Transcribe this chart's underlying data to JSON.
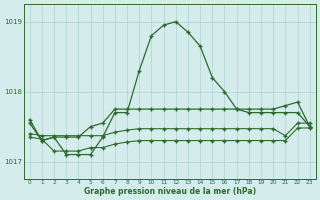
{
  "hours": [
    0,
    1,
    2,
    3,
    4,
    5,
    6,
    7,
    8,
    9,
    10,
    11,
    12,
    13,
    14,
    15,
    16,
    17,
    18,
    19,
    20,
    21,
    22,
    23
  ],
  "line1": [
    1017.6,
    1017.3,
    1017.35,
    1017.1,
    1017.1,
    1017.1,
    1017.35,
    1017.7,
    1017.7,
    1018.3,
    1018.8,
    1018.95,
    1019.0,
    1018.85,
    1018.65,
    1018.2,
    1018.0,
    1017.75,
    1017.7,
    1017.7,
    1017.7,
    1017.7,
    1017.7,
    1017.5
  ],
  "line2": [
    1017.55,
    1017.3,
    1017.35,
    1017.35,
    1017.35,
    1017.5,
    1017.55,
    1017.75,
    1017.75,
    1017.75,
    1017.75,
    1017.75,
    1017.75,
    1017.75,
    1017.75,
    1017.75,
    1017.75,
    1017.75,
    1017.75,
    1017.75,
    1017.75,
    1017.8,
    1017.85,
    1017.5
  ],
  "line3": [
    1017.4,
    1017.37,
    1017.37,
    1017.37,
    1017.37,
    1017.37,
    1017.37,
    1017.42,
    1017.45,
    1017.47,
    1017.47,
    1017.47,
    1017.47,
    1017.47,
    1017.47,
    1017.47,
    1017.47,
    1017.47,
    1017.47,
    1017.47,
    1017.47,
    1017.37,
    1017.55,
    1017.55
  ],
  "line4": [
    1017.35,
    1017.32,
    1017.15,
    1017.15,
    1017.15,
    1017.2,
    1017.2,
    1017.25,
    1017.28,
    1017.3,
    1017.3,
    1017.3,
    1017.3,
    1017.3,
    1017.3,
    1017.3,
    1017.3,
    1017.3,
    1017.3,
    1017.3,
    1017.3,
    1017.3,
    1017.48,
    1017.48
  ],
  "line_color": "#2d6a2d",
  "bg_color": "#d4edec",
  "grid_color": "#b0d0d0",
  "xlabel": "Graphe pression niveau de la mer (hPa)",
  "ylim": [
    1016.75,
    1019.25
  ],
  "yticks": [
    1017,
    1018,
    1019
  ]
}
